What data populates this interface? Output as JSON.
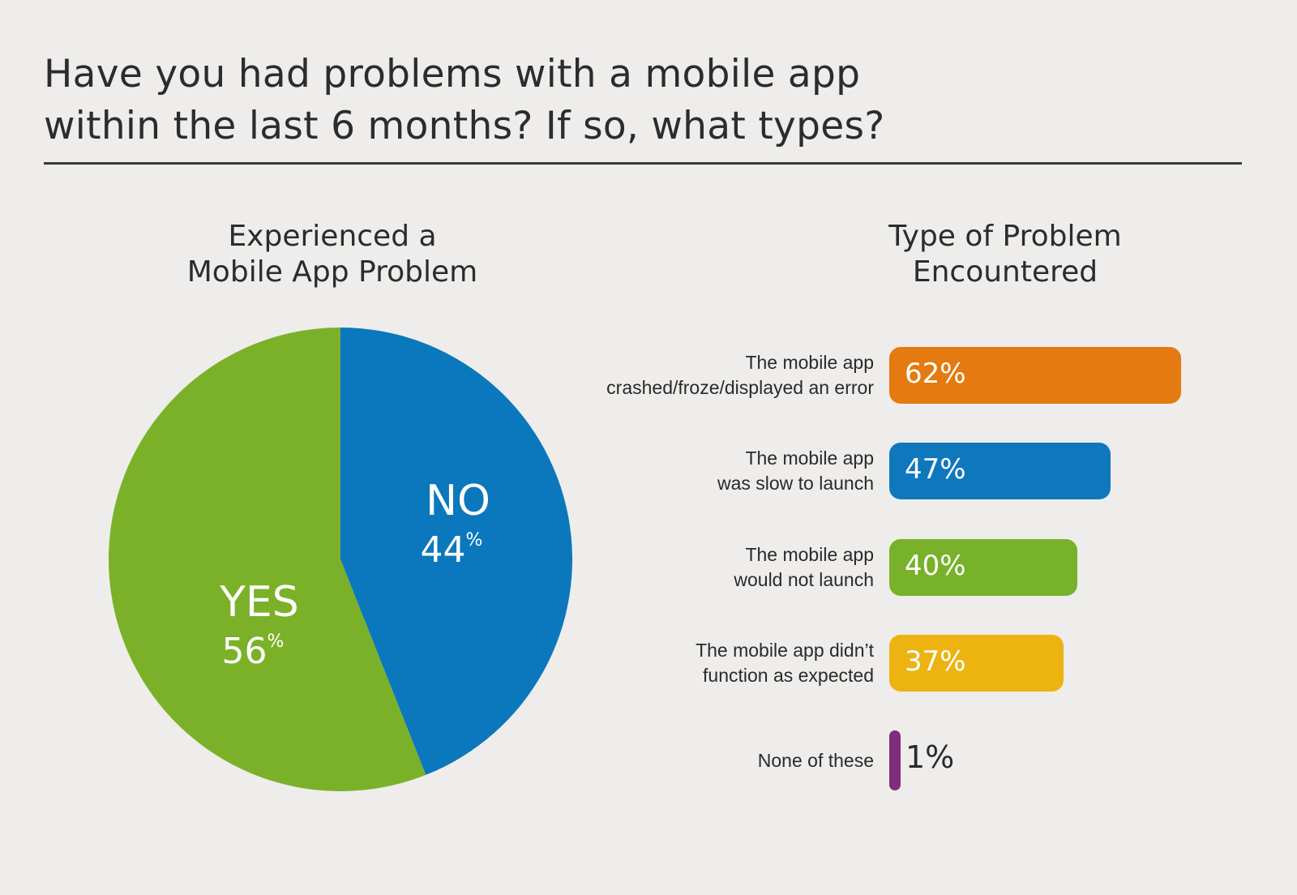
{
  "title_lines": [
    "Have you had problems with a mobile app",
    "within the last 6 months? If so, what types?"
  ],
  "chart_data": [
    {
      "type": "pie",
      "title_lines": [
        "Experienced a",
        "Mobile App Problem"
      ],
      "slices": [
        {
          "label": "NO",
          "value": 44,
          "value_text": "44",
          "unit": "%",
          "color": "#0b78bd"
        },
        {
          "label": "YES",
          "value": 56,
          "value_text": "56",
          "unit": "%",
          "color": "#7bb128"
        }
      ]
    },
    {
      "type": "bar",
      "orientation": "horizontal",
      "title_lines": [
        "Type of Problem",
        "Encountered"
      ],
      "categories": [
        {
          "lines": [
            "The mobile app",
            "crashed/froze/displayed an error"
          ],
          "value": 62,
          "value_text": "62%",
          "color": "#e47a10"
        },
        {
          "lines": [
            "The mobile app",
            "was slow to launch"
          ],
          "value": 47,
          "value_text": "47%",
          "color": "#0f78bd"
        },
        {
          "lines": [
            "The mobile app",
            "would not launch"
          ],
          "value": 40,
          "value_text": "40%",
          "color": "#78b12a"
        },
        {
          "lines": [
            "The mobile app didn’t",
            "function as expected"
          ],
          "value": 37,
          "value_text": "37%",
          "color": "#ecb311"
        },
        {
          "lines": [
            "None of these"
          ],
          "value": 1,
          "value_text": "1%",
          "color": "#7e2e7a"
        }
      ]
    }
  ]
}
